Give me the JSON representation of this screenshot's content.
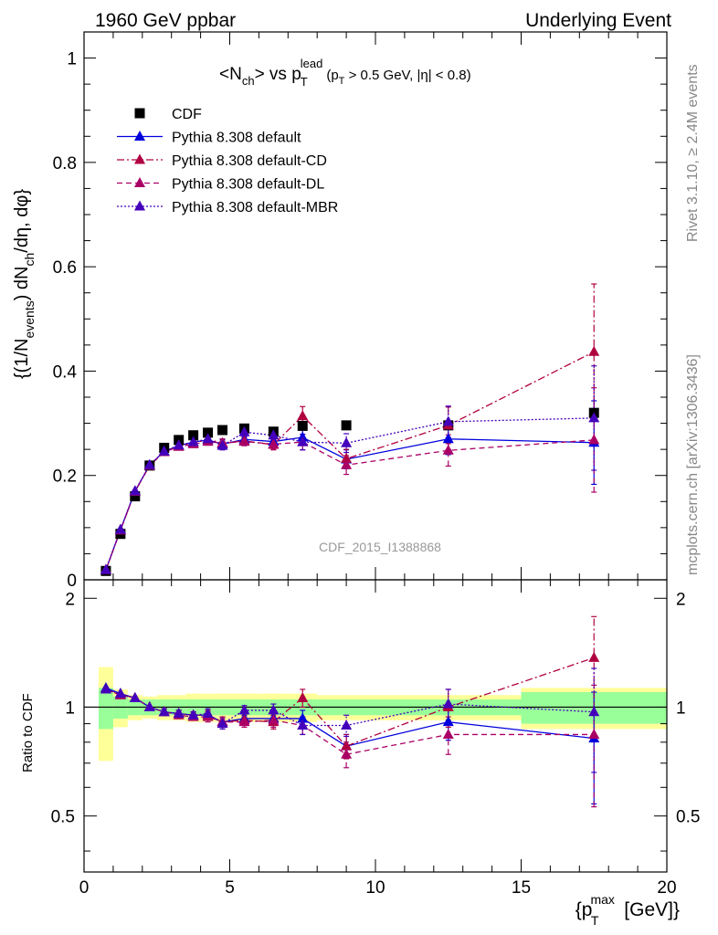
{
  "header": {
    "left": "1960 GeV ppbar",
    "right": "Underlying Event"
  },
  "side": {
    "rivet": "Rivet 3.1.10, ≥ 2.4M events",
    "mcplots": "mcplots.cern.ch [arXiv:1306.3436]"
  },
  "analysis_id": "CDF_2015_I1388868",
  "chart_data": [
    {
      "type": "scatter",
      "title_parts": {
        "n": "<N",
        "ch": "ch",
        "vs": "> vs p",
        "sub_t": "T",
        "sup_lead": "lead",
        "cut_open": "(p",
        "cut_t": "T",
        "cut_rest": " > 0.5 GeV, |η| < 0.8)"
      },
      "ylabel_parts": {
        "a": "{(1/N",
        "events": "events",
        "b": ") dN",
        "ch": "ch",
        "c": "/dη, dφ}"
      },
      "xlim": [
        0,
        20
      ],
      "ylim": [
        0,
        1.05
      ],
      "y_ticks": [
        "0",
        "0.2",
        "0.4",
        "0.6",
        "0.8",
        "1"
      ],
      "x": [
        0.75,
        1.25,
        1.75,
        2.25,
        2.75,
        3.25,
        3.75,
        4.25,
        4.75,
        5.5,
        6.5,
        7.5,
        9.0,
        12.5,
        17.5
      ],
      "series": [
        {
          "name": "CDF",
          "style": "data",
          "color": "#000000",
          "values": [
            0.017,
            0.088,
            0.16,
            0.219,
            0.253,
            0.268,
            0.277,
            0.282,
            0.287,
            0.29,
            0.284,
            0.295,
            0.296,
            0.296,
            0.32
          ]
        },
        {
          "name": "Pythia 8.308 default",
          "style": "solid",
          "color": "#0000dd",
          "values": [
            0.019,
            0.096,
            0.17,
            0.22,
            0.246,
            0.257,
            0.264,
            0.268,
            0.26,
            0.269,
            0.265,
            0.273,
            0.231,
            0.27,
            0.263
          ],
          "err": [
            0.001,
            0.003,
            0.003,
            0.004,
            0.004,
            0.005,
            0.006,
            0.007,
            0.008,
            0.008,
            0.01,
            0.015,
            0.018,
            0.03,
            0.08
          ]
        },
        {
          "name": "Pythia 8.308 default-CD",
          "style": "dashdot",
          "color": "#b00040",
          "values": [
            0.019,
            0.095,
            0.169,
            0.219,
            0.245,
            0.256,
            0.262,
            0.269,
            0.262,
            0.266,
            0.259,
            0.314,
            0.232,
            0.296,
            0.437
          ],
          "err": [
            0.001,
            0.003,
            0.003,
            0.004,
            0.004,
            0.005,
            0.006,
            0.007,
            0.008,
            0.008,
            0.01,
            0.018,
            0.018,
            0.035,
            0.13
          ]
        },
        {
          "name": "Pythia 8.308 default-DL",
          "style": "dashed",
          "color": "#aa0066",
          "values": [
            0.019,
            0.095,
            0.169,
            0.219,
            0.245,
            0.255,
            0.26,
            0.265,
            0.262,
            0.265,
            0.26,
            0.264,
            0.22,
            0.248,
            0.268
          ],
          "err": [
            0.001,
            0.003,
            0.003,
            0.004,
            0.004,
            0.005,
            0.006,
            0.007,
            0.008,
            0.008,
            0.01,
            0.015,
            0.018,
            0.03,
            0.1
          ]
        },
        {
          "name": "Pythia 8.308 default-MBR",
          "style": "dotted",
          "color": "#4400bb",
          "values": [
            0.019,
            0.096,
            0.17,
            0.22,
            0.246,
            0.258,
            0.264,
            0.27,
            0.257,
            0.283,
            0.277,
            0.264,
            0.262,
            0.303,
            0.31
          ],
          "err": [
            0.001,
            0.003,
            0.003,
            0.004,
            0.004,
            0.005,
            0.006,
            0.007,
            0.008,
            0.008,
            0.01,
            0.015,
            0.018,
            0.03,
            0.1
          ]
        }
      ]
    },
    {
      "type": "scatter",
      "ylabel": "Ratio to CDF",
      "xlabel_parts": {
        "a": "{p",
        "sup": "max",
        "sub": "T",
        "b": " [GeV]}"
      },
      "xlim": [
        0,
        20
      ],
      "ylim": [
        0.35,
        2.25
      ],
      "x_ticks": [
        "0",
        "5",
        "10",
        "15",
        "20"
      ],
      "y_ticks": [
        "0.5",
        "1",
        "2"
      ],
      "x_edges": [
        0.5,
        1.0,
        1.5,
        2.0,
        2.5,
        3.0,
        3.5,
        4.0,
        4.5,
        5.0,
        6.0,
        7.0,
        8.0,
        10.0,
        15.0,
        20.0
      ],
      "band_inner": [
        [
          0.87,
          1.13
        ],
        [
          0.93,
          1.07
        ],
        [
          0.95,
          1.05
        ],
        [
          0.95,
          1.05
        ],
        [
          0.95,
          1.05
        ],
        [
          0.95,
          1.05
        ],
        [
          0.95,
          1.05
        ],
        [
          0.95,
          1.05
        ],
        [
          0.95,
          1.05
        ],
        [
          0.95,
          1.05
        ],
        [
          0.95,
          1.05
        ],
        [
          0.95,
          1.05
        ],
        [
          0.95,
          1.05
        ],
        [
          0.95,
          1.05
        ],
        [
          0.9,
          1.1
        ]
      ],
      "band_outer": [
        [
          0.71,
          1.29
        ],
        [
          0.88,
          1.12
        ],
        [
          0.92,
          1.08
        ],
        [
          0.93,
          1.07
        ],
        [
          0.92,
          1.08
        ],
        [
          0.92,
          1.08
        ],
        [
          0.91,
          1.09
        ],
        [
          0.91,
          1.09
        ],
        [
          0.91,
          1.09
        ],
        [
          0.91,
          1.09
        ],
        [
          0.91,
          1.09
        ],
        [
          0.91,
          1.09
        ],
        [
          0.92,
          1.08
        ],
        [
          0.92,
          1.08
        ],
        [
          0.87,
          1.13
        ]
      ],
      "series": [
        {
          "name": "Pythia 8.308 default",
          "style": "solid",
          "color": "#0000dd",
          "values": [
            1.13,
            1.09,
            1.06,
            1.0,
            0.97,
            0.96,
            0.95,
            0.95,
            0.91,
            0.93,
            0.93,
            0.93,
            0.78,
            0.91,
            0.82
          ],
          "err": [
            0.01,
            0.01,
            0.01,
            0.01,
            0.02,
            0.02,
            0.02,
            0.03,
            0.03,
            0.03,
            0.04,
            0.05,
            0.06,
            0.1,
            0.28
          ]
        },
        {
          "name": "Pythia 8.308 default-CD",
          "style": "dashdot",
          "color": "#b00040",
          "values": [
            1.12,
            1.08,
            1.06,
            1.0,
            0.97,
            0.96,
            0.95,
            0.95,
            0.91,
            0.92,
            0.91,
            1.06,
            0.78,
            1.0,
            1.37
          ],
          "err": [
            0.01,
            0.01,
            0.01,
            0.01,
            0.02,
            0.02,
            0.02,
            0.03,
            0.03,
            0.03,
            0.04,
            0.06,
            0.06,
            0.12,
            0.41
          ]
        },
        {
          "name": "Pythia 8.308 default-DL",
          "style": "dashed",
          "color": "#aa0066",
          "values": [
            1.12,
            1.08,
            1.06,
            1.0,
            0.97,
            0.95,
            0.94,
            0.94,
            0.91,
            0.91,
            0.92,
            0.89,
            0.74,
            0.84,
            0.84
          ],
          "err": [
            0.01,
            0.01,
            0.01,
            0.01,
            0.02,
            0.02,
            0.02,
            0.03,
            0.03,
            0.03,
            0.04,
            0.05,
            0.06,
            0.1,
            0.31
          ]
        },
        {
          "name": "Pythia 8.308 default-MBR",
          "style": "dotted",
          "color": "#4400bb",
          "values": [
            1.12,
            1.09,
            1.06,
            1.0,
            0.97,
            0.96,
            0.95,
            0.96,
            0.9,
            0.98,
            0.98,
            0.89,
            0.89,
            1.02,
            0.97
          ],
          "err": [
            0.01,
            0.01,
            0.01,
            0.01,
            0.02,
            0.02,
            0.02,
            0.03,
            0.03,
            0.03,
            0.04,
            0.05,
            0.06,
            0.1,
            0.31
          ]
        }
      ]
    }
  ]
}
